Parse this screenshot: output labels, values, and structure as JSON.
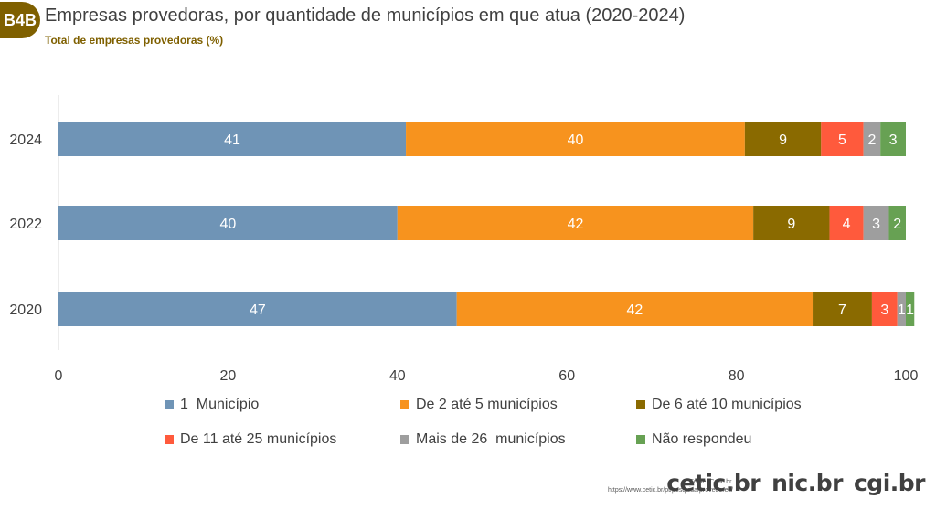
{
  "header": {
    "badge": "B4B",
    "title": "Empresas provedoras, por quantidade de municípios em que atua (2020-2024)",
    "subtitle": "Total de empresas provedoras (%)"
  },
  "chart_data": {
    "type": "bar",
    "orientation": "horizontal",
    "stacked": true,
    "categories": [
      "2024",
      "2022",
      "2020"
    ],
    "series": [
      {
        "name": "1  Município",
        "color": "#6f94b6",
        "values": [
          41,
          40,
          47
        ],
        "labels": [
          "41",
          "40",
          "47"
        ]
      },
      {
        "name": "De 2 até 5 municípios",
        "color": "#f7931e",
        "values": [
          40,
          42,
          42
        ],
        "labels": [
          "40",
          "42",
          "42"
        ]
      },
      {
        "name": "De 6 até 10 municípios",
        "color": "#8a6a00",
        "values": [
          9,
          9,
          7
        ],
        "labels": [
          "9",
          "9",
          "7"
        ]
      },
      {
        "name": "De 11 até 25 municípios",
        "color": "#ff5a3c",
        "values": [
          5,
          4,
          3
        ],
        "labels": [
          "5",
          "4",
          "3"
        ]
      },
      {
        "name": "Mais de 26  municípios",
        "color": "#9e9e9e",
        "values": [
          2,
          3,
          1
        ],
        "labels": [
          "2",
          "3",
          "1"
        ]
      },
      {
        "name": "Não respondeu",
        "color": "#67a153",
        "values": [
          3,
          2,
          1
        ],
        "labels": [
          "3",
          "2",
          "1"
        ]
      }
    ],
    "xlim": [
      0,
      100
    ],
    "xticks": [
      "0",
      "20",
      "40",
      "60",
      "80",
      "100"
    ],
    "xlabel": "",
    "ylabel": "",
    "grid": false,
    "legend_position": "bottom"
  },
  "footer": {
    "source_line1": "Fonte: Cetic.br.",
    "source_line2": "https://www.cetic.br/pt/pesquisa/provedores/",
    "logos": [
      "cetic.br",
      "nic.br",
      "cgi.br"
    ]
  }
}
